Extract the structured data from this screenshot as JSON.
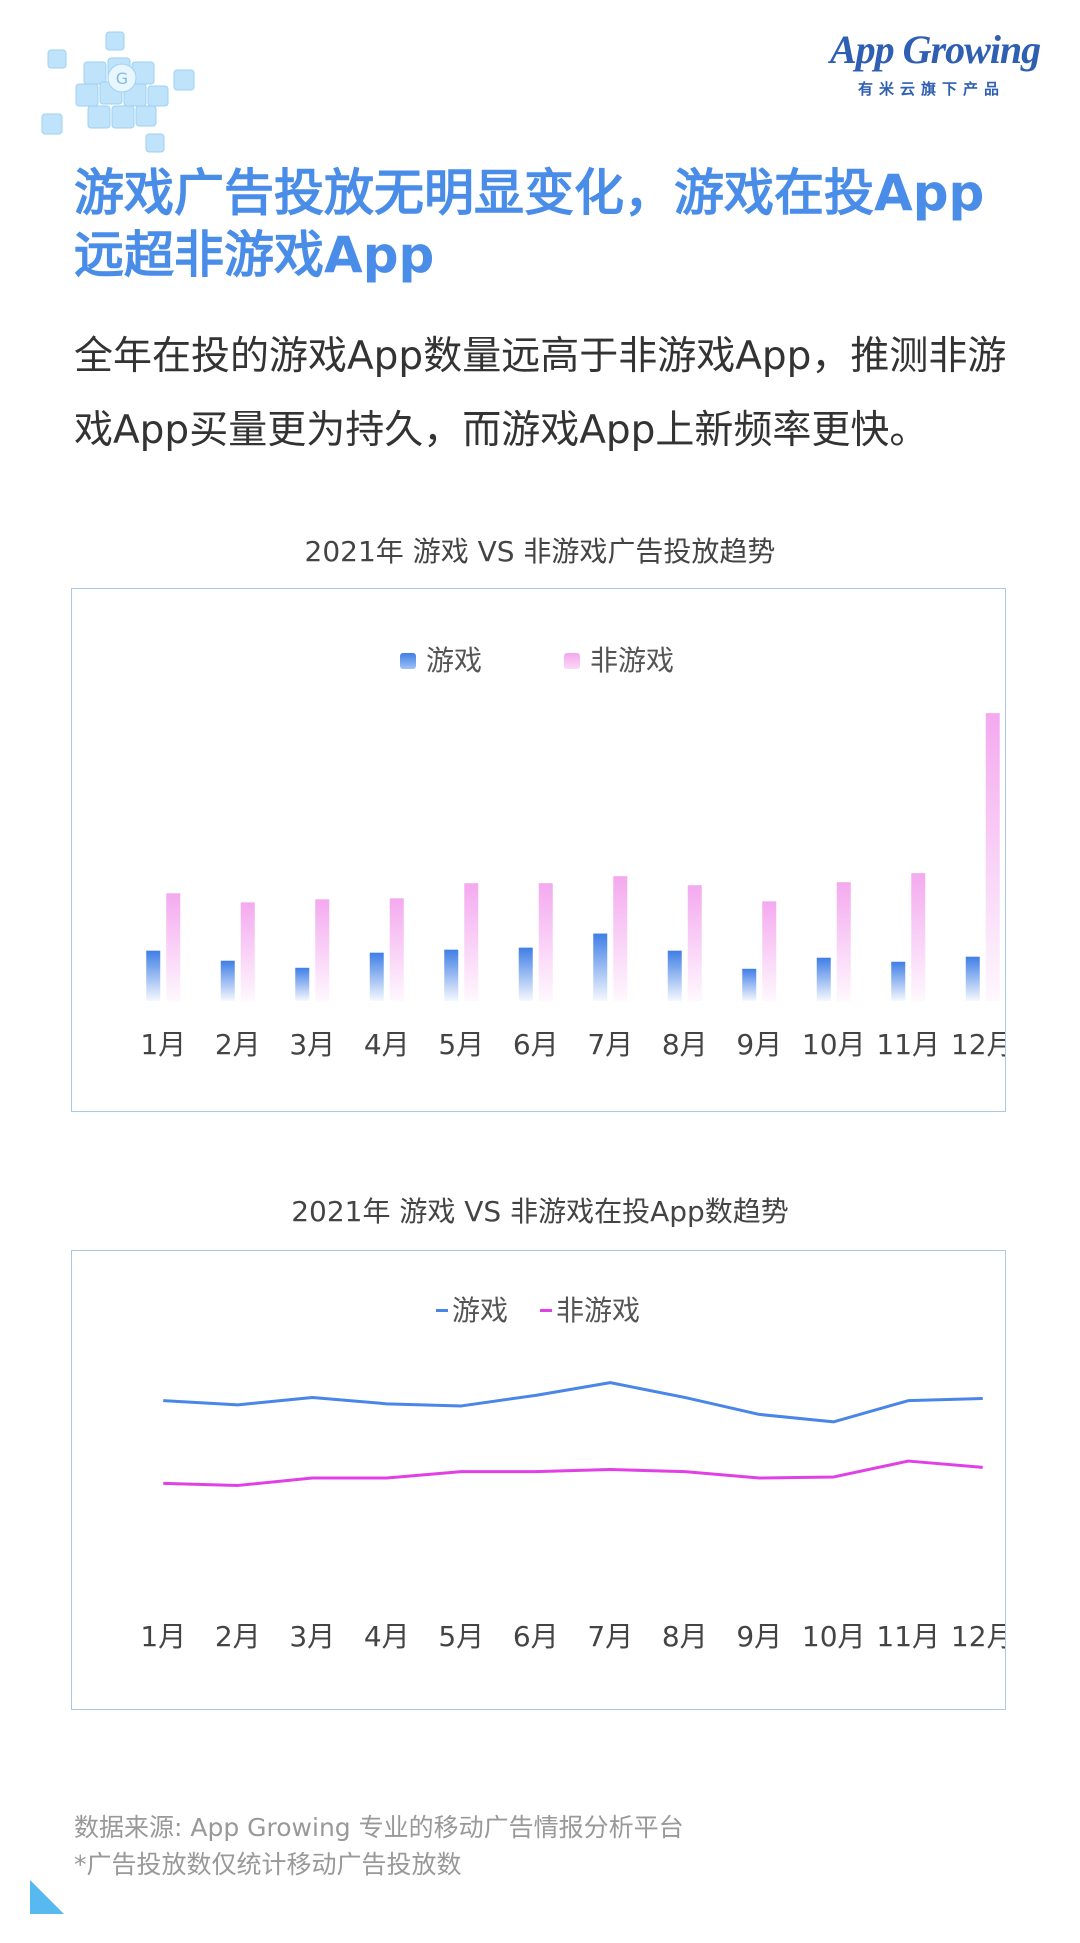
{
  "header": {
    "logo_text": "App Growing",
    "logo_sub": "有米云旗下产品",
    "brand_color": "#2f5fb3"
  },
  "title_lines": [
    "游戏广告投放无明显变化，游戏在投App",
    "远超非游戏App"
  ],
  "subtitle": "全年在投的游戏App数量远高于非游戏App，推测非游戏App买量更为持久，而游戏App上新频率更快。",
  "colors": {
    "game": "#4a86e8",
    "nongame_bar": "#f6b7f0",
    "nongame_line": "#e040e6",
    "title": "#4a8de8"
  },
  "chart_data": [
    {
      "type": "bar",
      "title": "2021年 游戏 VS 非游戏广告投放趋势",
      "categories": [
        "1月",
        "2月",
        "3月",
        "4月",
        "5月",
        "6月",
        "7月",
        "8月",
        "9月",
        "10月",
        "11月",
        "12月"
      ],
      "series": [
        {
          "name": "游戏",
          "values": [
            50,
            40,
            33,
            48,
            51,
            53,
            67,
            50,
            32,
            43,
            39,
            44
          ]
        },
        {
          "name": "非游戏",
          "values": [
            107,
            98,
            101,
            102,
            117,
            117,
            124,
            115,
            99,
            118,
            127,
            286
          ]
        }
      ],
      "ylim": [
        0,
        300
      ],
      "grid": false,
      "legend": "top-center"
    },
    {
      "type": "line",
      "title": "2021年 游戏 VS 非游戏在投App数趋势",
      "categories": [
        "1月",
        "2月",
        "3月",
        "4月",
        "5月",
        "6月",
        "7月",
        "8月",
        "9月",
        "10月",
        "11月",
        "12月"
      ],
      "series": [
        {
          "name": "游戏",
          "values": [
            206,
            202,
            209,
            203,
            201,
            211,
            223,
            209,
            193,
            186,
            206,
            208
          ]
        },
        {
          "name": "非游戏",
          "values": [
            128,
            126,
            133,
            133,
            139,
            139,
            141,
            139,
            133,
            134,
            149,
            143
          ]
        }
      ],
      "ylim": [
        0,
        300
      ],
      "grid": false,
      "legend": "top-center"
    }
  ],
  "footer": {
    "source": "数据来源: App Growing 专业的移动广告情报分析平台",
    "note": "*广告投放数仅统计移动广告投放数"
  }
}
